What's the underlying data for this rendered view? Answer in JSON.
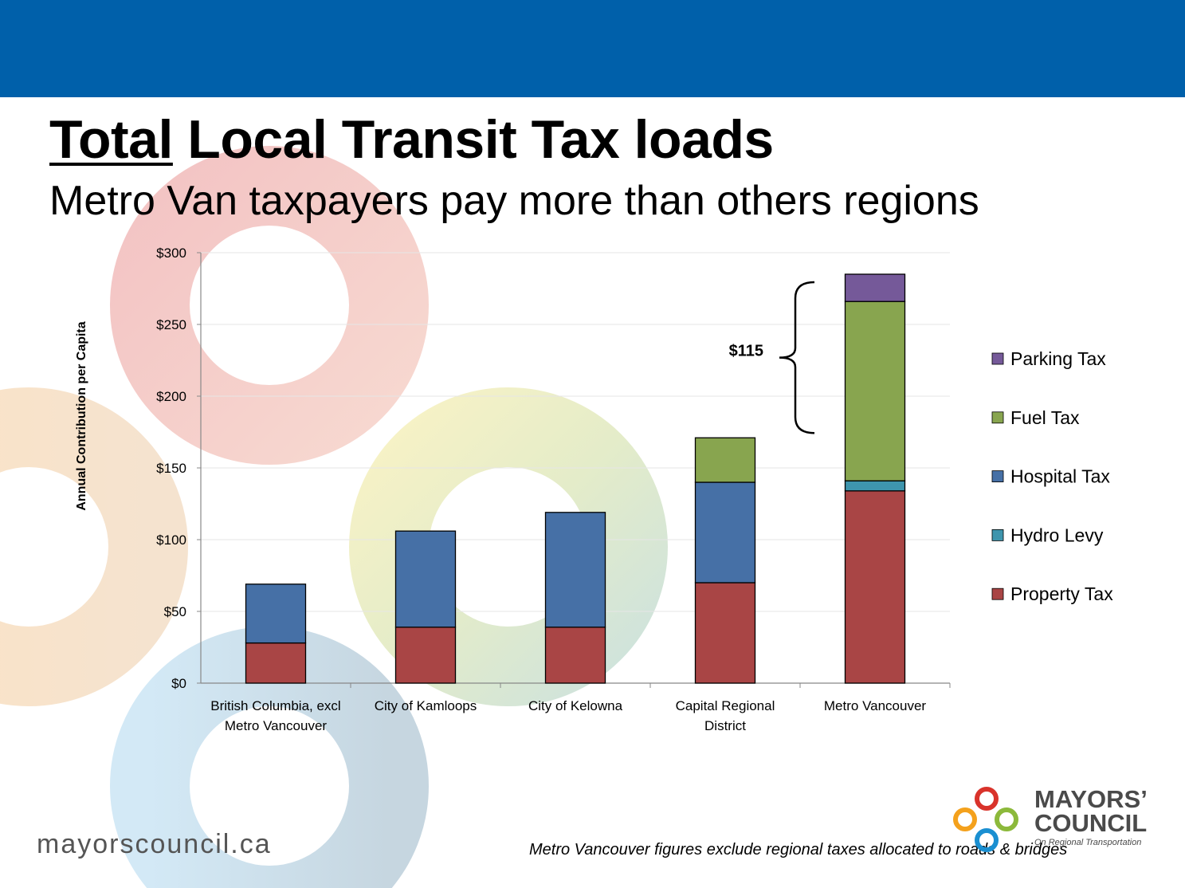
{
  "slide": {
    "title_underlined": "Total",
    "title_rest": " Local Transit Tax loads",
    "subtitle": "Metro Van taxpayers pay more than others regions",
    "website": "mayorscouncil.ca",
    "footnote": "Metro Vancouver figures exclude regional taxes allocated to roads & bridges",
    "logo": {
      "line1": "MAYORS’",
      "line2": "COUNCIL",
      "line3": "On Regional Transportation"
    }
  },
  "chart_data": {
    "type": "bar",
    "stacked": true,
    "ylabel": "Annual Contribution per Capita",
    "xlabel": "",
    "ylim": [
      0,
      300
    ],
    "yticks": [
      "$0",
      "$50",
      "$100",
      "$150",
      "$200",
      "$250",
      "$300"
    ],
    "ytick_values": [
      0,
      50,
      100,
      150,
      200,
      250,
      300
    ],
    "categories": [
      [
        "British Columbia, excl",
        "Metro Vancouver"
      ],
      [
        "City of Kamloops"
      ],
      [
        "City of Kelowna"
      ],
      [
        "Capital Regional",
        "District"
      ],
      [
        "Metro Vancouver"
      ]
    ],
    "series": [
      {
        "name": "Property Tax",
        "color": "#a94545",
        "values": [
          28,
          39,
          39,
          70,
          134
        ]
      },
      {
        "name": "Hydro Levy",
        "color": "#3e95ad",
        "values": [
          0,
          0,
          0,
          0,
          7
        ]
      },
      {
        "name": "Hospital Tax",
        "color": "#4670a6",
        "values": [
          41,
          67,
          80,
          70,
          0
        ]
      },
      {
        "name": "Fuel Tax",
        "color": "#88a54f",
        "values": [
          0,
          0,
          0,
          31,
          125
        ]
      },
      {
        "name": "Parking Tax",
        "color": "#755999",
        "values": [
          0,
          0,
          0,
          0,
          19
        ]
      }
    ],
    "legend_order": [
      "Parking Tax",
      "Fuel Tax",
      "Hospital Tax",
      "Hydro Levy",
      "Property Tax"
    ],
    "legend_position": "right",
    "annotation": {
      "text": "$115",
      "from": 171,
      "to": 285
    },
    "grid": true
  }
}
